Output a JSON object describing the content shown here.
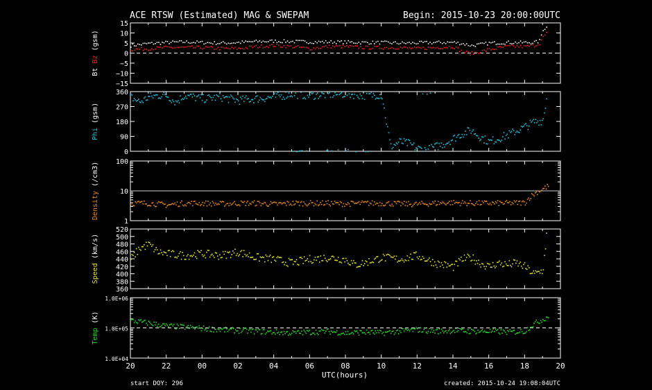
{
  "header": {
    "title": "ACE RTSW (Estimated) MAG & SWEPAM",
    "begin": "Begin: 2015-10-23 20:00:00UTC"
  },
  "footer": {
    "start_doy": "start DOY: 296",
    "created": "created: 2015-10-24 19:08:04UTC",
    "xlabel": "UTC(hours)"
  },
  "colors": {
    "background": "#000000",
    "axes": "#ffffff",
    "bt": "#ffffff",
    "bz": "#ff2020",
    "phi": "#22c4e8",
    "density": "#f08a1e",
    "speed": "#e6e62a",
    "temp": "#22dd22"
  },
  "chart_data": [
    {
      "type": "scatter",
      "panel": "mag",
      "ylabel_parts": [
        "Bt",
        "Bz",
        "(gsm)"
      ],
      "ylim": [
        -15,
        15
      ],
      "yticks": [
        "15",
        "10",
        "5",
        "0",
        "−5",
        "−10",
        "−15"
      ],
      "ytick_values": [
        15,
        10,
        5,
        0,
        -5,
        -10,
        -15
      ],
      "xlim": [
        0,
        24
      ],
      "xticks": [
        "20",
        "22",
        "00",
        "02",
        "04",
        "06",
        "08",
        "10",
        "12",
        "14",
        "16",
        "18",
        "20"
      ],
      "dashed_reference": 0,
      "series": [
        {
          "name": "Bt",
          "x": [
            0,
            1,
            2,
            3,
            4,
            5,
            6,
            7,
            8,
            9,
            10,
            11,
            12,
            13,
            14,
            15,
            16,
            17,
            18,
            18.5,
            19,
            19.5,
            20,
            21,
            22,
            22.5,
            22.8,
            23,
            23.2
          ],
          "y": [
            4,
            5,
            5.5,
            5.8,
            5.5,
            5.2,
            5.5,
            6,
            6.2,
            6,
            5.8,
            5.8,
            5.7,
            5.5,
            5.5,
            5.2,
            5.3,
            5.5,
            5.6,
            5,
            4,
            4.5,
            5.2,
            5.5,
            5.5,
            5.6,
            6,
            12,
            13
          ]
        },
        {
          "name": "Bz",
          "x": [
            0,
            1,
            2,
            3,
            4,
            5,
            6,
            7,
            8,
            9,
            10,
            11,
            12,
            13,
            14,
            15,
            16,
            17,
            18,
            18.5,
            19,
            19.5,
            20,
            21,
            22,
            22.5,
            22.8,
            23,
            23.2
          ],
          "y": [
            2,
            2.5,
            3,
            3,
            3,
            2.5,
            2.5,
            3.5,
            4,
            3.5,
            2.5,
            3.5,
            3.5,
            3,
            3,
            3,
            2.5,
            3,
            3.5,
            1,
            0,
            1,
            2,
            3.5,
            3.5,
            4,
            5,
            8,
            10
          ]
        }
      ]
    },
    {
      "type": "scatter",
      "panel": "phi",
      "ylabel_parts": [
        "Phi",
        "(gsm)"
      ],
      "ylim": [
        0,
        360
      ],
      "yticks": [
        "360",
        "270",
        "180",
        "90",
        "0"
      ],
      "ytick_values": [
        360,
        270,
        180,
        90,
        0
      ],
      "series": [
        {
          "name": "Phi",
          "x": [
            0,
            0.5,
            1,
            1.5,
            2,
            2.5,
            3,
            4,
            5,
            6,
            7,
            8,
            9,
            10,
            11,
            12,
            13,
            14,
            14.5,
            15,
            15.5,
            16,
            16.5,
            17,
            17.5,
            18,
            18.5,
            19,
            19.5,
            20,
            21,
            22,
            22.5,
            23,
            23.2
          ],
          "y": [
            330,
            300,
            330,
            340,
            340,
            300,
            340,
            320,
            330,
            310,
            320,
            330,
            350,
            340,
            345,
            350,
            340,
            345,
            30,
            60,
            50,
            20,
            10,
            30,
            50,
            80,
            110,
            130,
            90,
            60,
            100,
            150,
            180,
            190,
            320
          ]
        }
      ]
    },
    {
      "type": "scatter",
      "panel": "density",
      "ylabel_parts": [
        "Density",
        "(/cm3)"
      ],
      "yscale": "log",
      "ylim": [
        1,
        100
      ],
      "yticks": [
        "100",
        "10",
        "1"
      ],
      "ytick_values": [
        100,
        10,
        1
      ],
      "reference": 10,
      "series": [
        {
          "name": "Density",
          "x": [
            0,
            1,
            2,
            3,
            4,
            5,
            6,
            7,
            8,
            9,
            10,
            11,
            12,
            13,
            14,
            15,
            16,
            17,
            18,
            19,
            20,
            21,
            22,
            23,
            23.3
          ],
          "y": [
            4,
            4,
            3.5,
            4,
            4,
            3.8,
            4,
            4,
            3.7,
            4,
            4,
            4,
            3.8,
            4,
            4,
            3.8,
            3.7,
            4,
            4.2,
            4,
            4,
            4,
            4.2,
            12,
            15
          ]
        }
      ]
    },
    {
      "type": "scatter",
      "panel": "speed",
      "ylabel_parts": [
        "Speed",
        "(km/s)"
      ],
      "ylim": [
        360,
        520
      ],
      "yticks": [
        "520",
        "500",
        "480",
        "460",
        "440",
        "420",
        "400",
        "380",
        "360"
      ],
      "ytick_values": [
        520,
        500,
        480,
        460,
        440,
        420,
        400,
        380,
        360
      ],
      "series": [
        {
          "name": "Speed",
          "x": [
            0,
            0.5,
            1,
            1.5,
            2,
            3,
            4,
            5,
            6,
            7,
            8,
            9,
            10,
            11,
            12,
            12.5,
            13,
            14,
            15,
            16,
            17,
            18,
            18.5,
            19,
            19.5,
            20,
            20.5,
            21,
            21.5,
            22,
            22.5,
            23,
            23.2
          ],
          "y": [
            440,
            470,
            480,
            460,
            455,
            450,
            455,
            450,
            460,
            445,
            440,
            430,
            440,
            445,
            440,
            425,
            430,
            445,
            440,
            450,
            430,
            420,
            440,
            445,
            430,
            420,
            430,
            425,
            430,
            420,
            400,
            410,
            505
          ]
        }
      ]
    },
    {
      "type": "scatter",
      "panel": "temp",
      "ylabel_parts": [
        "Temp",
        "(K)"
      ],
      "yscale": "log",
      "ylim": [
        10000,
        1000000
      ],
      "yticks": [
        "1.0E+06",
        "1.0E+05",
        "1.0E+04"
      ],
      "ytick_values": [
        1000000,
        100000,
        10000
      ],
      "dashed_reference": 100000,
      "series": [
        {
          "name": "Temp",
          "x": [
            0,
            1,
            2,
            3,
            4,
            5,
            6,
            7,
            8,
            9,
            10,
            11,
            12,
            13,
            14,
            15,
            16,
            17,
            18,
            19,
            20,
            21,
            22,
            23,
            23.3
          ],
          "y": [
            180000,
            150000,
            120000,
            110000,
            100000,
            90000,
            85000,
            80000,
            75000,
            70000,
            75000,
            80000,
            70000,
            75000,
            70000,
            80000,
            90000,
            80000,
            85000,
            80000,
            80000,
            75000,
            80000,
            200000,
            250000
          ]
        }
      ]
    }
  ]
}
